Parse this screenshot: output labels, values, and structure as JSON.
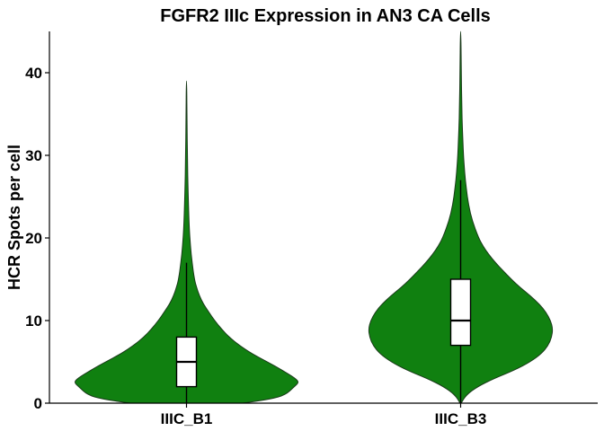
{
  "chart_data": {
    "type": "violin",
    "title": "FGFR2 IIIc Expression in AN3 CA Cells",
    "xlabel": "",
    "ylabel": "HCR Spots per cell",
    "ylim": [
      0,
      45
    ],
    "yticks": [
      0,
      10,
      20,
      30,
      40
    ],
    "grid": false,
    "legend": "none",
    "categories": [
      "IIIC_B1",
      "IIIC_B3"
    ],
    "colors": {
      "fill": "#108010",
      "outline": "#1a3a1a",
      "box_fill": "#ffffff",
      "box_line": "#000000"
    },
    "series": [
      {
        "category": "IIIC_B1",
        "min": 0,
        "q1": 2,
        "median": 5,
        "q3": 8,
        "whisker_high": 17,
        "max": 39,
        "density": [
          [
            0,
            0.5
          ],
          [
            0.5,
            0.75
          ],
          [
            1,
            0.88
          ],
          [
            2,
            0.96
          ],
          [
            2.5,
            1.0
          ],
          [
            3,
            0.97
          ],
          [
            4,
            0.85
          ],
          [
            5,
            0.72
          ],
          [
            6,
            0.58
          ],
          [
            7,
            0.47
          ],
          [
            8,
            0.38
          ],
          [
            9,
            0.31
          ],
          [
            10,
            0.25
          ],
          [
            11,
            0.2
          ],
          [
            12,
            0.15
          ],
          [
            13,
            0.115
          ],
          [
            14,
            0.09
          ],
          [
            15,
            0.07
          ],
          [
            17,
            0.05
          ],
          [
            19,
            0.035
          ],
          [
            21,
            0.025
          ],
          [
            25,
            0.015
          ],
          [
            30,
            0.008
          ],
          [
            34,
            0.005
          ],
          [
            39,
            0.002
          ]
        ]
      },
      {
        "category": "IIIC_B3",
        "min": 0,
        "q1": 7,
        "median": 10,
        "q3": 15,
        "whisker_high": 27,
        "max": 45,
        "density": [
          [
            0,
            0.005
          ],
          [
            1,
            0.05
          ],
          [
            2,
            0.15
          ],
          [
            3,
            0.3
          ],
          [
            4,
            0.48
          ],
          [
            5,
            0.62
          ],
          [
            6,
            0.72
          ],
          [
            7,
            0.78
          ],
          [
            8,
            0.81
          ],
          [
            9,
            0.82
          ],
          [
            10,
            0.8
          ],
          [
            11,
            0.76
          ],
          [
            12,
            0.7
          ],
          [
            13,
            0.62
          ],
          [
            14,
            0.53
          ],
          [
            15,
            0.45
          ],
          [
            16,
            0.38
          ],
          [
            17,
            0.31
          ],
          [
            18,
            0.25
          ],
          [
            19,
            0.2
          ],
          [
            20,
            0.16
          ],
          [
            22,
            0.105
          ],
          [
            24,
            0.07
          ],
          [
            26,
            0.05
          ],
          [
            28,
            0.035
          ],
          [
            30,
            0.025
          ],
          [
            33,
            0.016
          ],
          [
            36,
            0.01
          ],
          [
            40,
            0.006
          ],
          [
            45,
            0.002
          ]
        ]
      }
    ]
  }
}
